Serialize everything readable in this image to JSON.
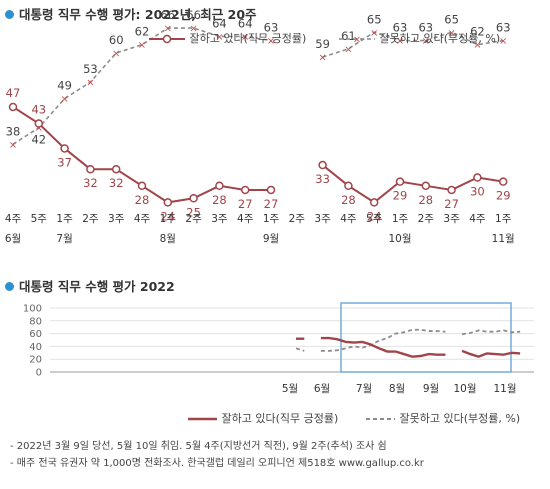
{
  "main_title": "대통령 직무 수행 평가: 2022년, 최근 20주",
  "sub_title": "대통령 직무 수행 평가 2022",
  "legend": {
    "approve": "잘하고 있다(직무 긍정률)",
    "disapprove": "잘못하고 있다(부정률, %)"
  },
  "mini_legend": {
    "approve": "잘하고 있다(직무 긍정률)",
    "disapprove": "잘못하고 있다(부정률, %)"
  },
  "notes": [
    "- 2022년 3월 9일 당선, 5월 10일 취임. 5월 4주(지방선거 직전), 9월 2주(추석) 조사 쉼",
    "- 매주 전국 유권자 약 1,000명 전화조사. 한국갤럽 데일리 오피니언 제518호 www.gallup.co.kr"
  ],
  "colors": {
    "approve": "#a0454a",
    "disapprove": "#8c8c8c",
    "dot": "#2e8fd6",
    "highlight": "#6aa6d8"
  },
  "chart_data": [
    {
      "type": "line",
      "title": "대통령 직무 수행 평가: 2022년, 최근 20주",
      "x": [
        "4주",
        "5주",
        "1주",
        "2주",
        "3주",
        "4주",
        "1주",
        "2주",
        "3주",
        "4주",
        "1주",
        "2주",
        "3주",
        "4주",
        "5주",
        "1주",
        "2주",
        "3주",
        "4주",
        "1주"
      ],
      "months": [
        {
          "label": "6월",
          "index": 0
        },
        {
          "label": "7월",
          "index": 2
        },
        {
          "label": "8월",
          "index": 6
        },
        {
          "label": "9월",
          "index": 10
        },
        {
          "label": "10월",
          "index": 15
        },
        {
          "label": "11월",
          "index": 19
        }
      ],
      "series": [
        {
          "name": "잘하고 있다(직무 긍정률)",
          "style": "solid",
          "values": [
            47,
            43,
            37,
            32,
            32,
            28,
            24,
            25,
            28,
            27,
            27,
            null,
            33,
            28,
            24,
            29,
            28,
            27,
            30,
            29
          ]
        },
        {
          "name": "잘못하고 있다(부정률, %)",
          "style": "dashed",
          "values": [
            38,
            42,
            49,
            53,
            60,
            62,
            66,
            66,
            64,
            64,
            63,
            null,
            59,
            61,
            65,
            63,
            63,
            65,
            62,
            63
          ]
        }
      ],
      "xlabel": "",
      "ylabel": ""
    },
    {
      "type": "line",
      "title": "대통령 직무 수행 평가 2022",
      "y_ticks": [
        0,
        20,
        40,
        60,
        80,
        100
      ],
      "ylim": [
        0,
        100
      ],
      "x_tick_labels": [
        "5월",
        "6월",
        "7월",
        "8월",
        "9월",
        "10월",
        "11월"
      ],
      "highlight": "최근 20주 (6월 4주 ~ 11월 1주)",
      "series": [
        {
          "name": "잘하고 있다(직무 긍정률)",
          "style": "solid",
          "values": [
            52,
            52,
            null,
            53,
            53,
            51,
            47,
            46,
            47,
            43,
            37,
            32,
            32,
            28,
            24,
            25,
            28,
            27,
            27,
            null,
            33,
            28,
            24,
            29,
            28,
            27,
            30,
            29
          ]
        },
        {
          "name": "잘못하고 있다(부정률, %)",
          "style": "dashed",
          "values": [
            37,
            33,
            null,
            33,
            33,
            34,
            37,
            40,
            38,
            42,
            49,
            53,
            60,
            62,
            66,
            66,
            64,
            64,
            63,
            null,
            59,
            61,
            65,
            63,
            63,
            65,
            62,
            63
          ]
        }
      ]
    }
  ]
}
